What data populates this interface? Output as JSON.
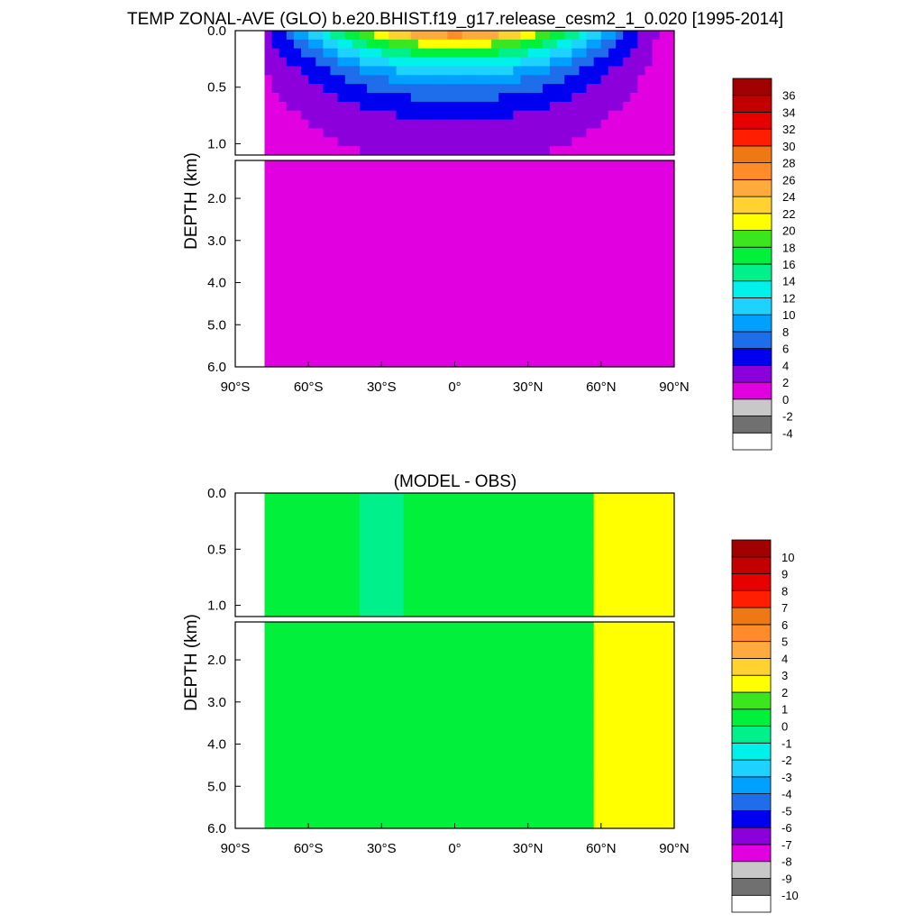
{
  "figure_title": "TEMP ZONAL-AVE (GLO) b.e20.BHIST.f19_g17.release_cesm2_1_0.020 [1995-2014]",
  "chart_data": [
    {
      "type": "contour",
      "name": "temperature",
      "title": "",
      "xlabel": "",
      "ylabel": "DEPTH (km)",
      "xlim": [
        -90,
        90
      ],
      "ylim": [
        6.0,
        0.0
      ],
      "x_ticks": [
        -90,
        -60,
        -30,
        0,
        30,
        60,
        90
      ],
      "x_tick_labels": [
        "90°S",
        "60°S",
        "30°S",
        "0°",
        "30°N",
        "60°N",
        "90°N"
      ],
      "y_ticks_upper": [
        0.0,
        0.5,
        1.0
      ],
      "y_ticks_upper_labels": [
        "0.0",
        "0.5",
        "1.0"
      ],
      "y_ticks_lower": [
        2.0,
        3.0,
        4.0,
        5.0,
        6.0
      ],
      "y_ticks_lower_labels": [
        "2.0",
        "3.0",
        "4.0",
        "5.0",
        "6.0"
      ],
      "upper_panel_depth_range": [
        0.0,
        1.1
      ],
      "lower_panel_depth_range": [
        1.1,
        6.0
      ],
      "colorbar": {
        "levels": [
          "-4",
          "-2",
          "0",
          "2",
          "4",
          "6",
          "8",
          "10",
          "12",
          "14",
          "16",
          "18",
          "20",
          "22",
          "24",
          "26",
          "28",
          "30",
          "32",
          "34",
          "36"
        ],
        "colors": [
          "#ffffff",
          "#707070",
          "#c8c8c8",
          "#e000e0",
          "#8c00dc",
          "#0000f0",
          "#1e6eeb",
          "#00a0ff",
          "#1ed2ff",
          "#00f0ea",
          "#00f08c",
          "#00f03c",
          "#3ce61e",
          "#ffff00",
          "#ffd232",
          "#ffaa3c",
          "#ff8c28",
          "#f07814",
          "#ff1e00",
          "#e60000",
          "#c30000",
          "#a00000"
        ]
      }
    },
    {
      "type": "contour",
      "name": "difference",
      "title": "(MODEL - OBS)",
      "xlabel": "",
      "ylabel": "DEPTH (km)",
      "xlim": [
        -90,
        90
      ],
      "ylim": [
        6.0,
        0.0
      ],
      "x_ticks": [
        -90,
        -60,
        -30,
        0,
        30,
        60,
        90
      ],
      "x_tick_labels": [
        "90°S",
        "60°S",
        "30°S",
        "0°",
        "30°N",
        "60°N",
        "90°N"
      ],
      "y_ticks_upper": [
        0.0,
        0.5,
        1.0
      ],
      "y_ticks_upper_labels": [
        "0.0",
        "0.5",
        "1.0"
      ],
      "y_ticks_lower": [
        2.0,
        3.0,
        4.0,
        5.0,
        6.0
      ],
      "y_ticks_lower_labels": [
        "2.0",
        "3.0",
        "4.0",
        "5.0",
        "6.0"
      ],
      "upper_panel_depth_range": [
        0.0,
        1.1
      ],
      "lower_panel_depth_range": [
        1.1,
        6.0
      ],
      "colorbar": {
        "levels": [
          "-10",
          "-9",
          "-8",
          "-7",
          "-6",
          "-5",
          "-4",
          "-3",
          "-2",
          "-1",
          "0",
          "1",
          "2",
          "3",
          "4",
          "5",
          "6",
          "7",
          "8",
          "9",
          "10"
        ],
        "colors": [
          "#ffffff",
          "#707070",
          "#c8c8c8",
          "#e000e0",
          "#8c00dc",
          "#0000f0",
          "#1e6eeb",
          "#00a0ff",
          "#1ed2ff",
          "#00f0ea",
          "#00f08c",
          "#00f03c",
          "#3ce61e",
          "#ffff00",
          "#ffd232",
          "#ffaa3c",
          "#ff8c28",
          "#f07814",
          "#ff1e00",
          "#e60000",
          "#c30000",
          "#a00000"
        ]
      }
    }
  ]
}
